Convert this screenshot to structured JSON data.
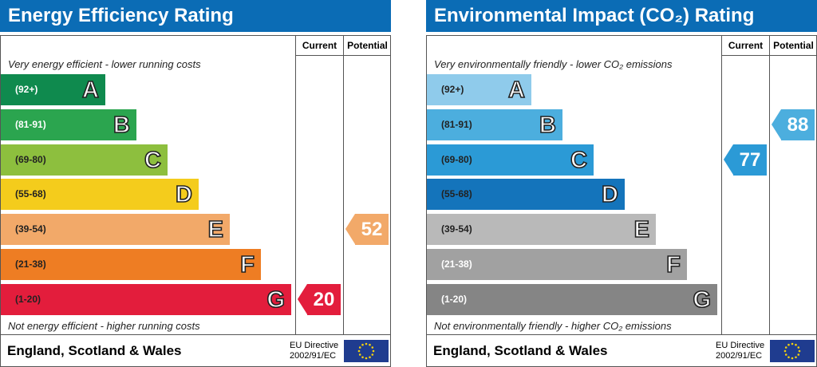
{
  "headers": {
    "current": "Current",
    "potential": "Potential"
  },
  "footer": {
    "region": "England, Scotland & Wales",
    "directive_line1": "EU Directive",
    "directive_line2": "2002/91/EC"
  },
  "chart_data": [
    {
      "type": "bar",
      "title": "Energy Efficiency Rating",
      "top_text": "Very energy efficient - lower running costs",
      "bottom_text": "Not energy efficient - higher running costs",
      "bands": [
        {
          "range": "(92+)",
          "letter": "A",
          "color": "#0f8a4e",
          "range_color": "#ffffff"
        },
        {
          "range": "(81-91)",
          "letter": "B",
          "color": "#2ba54f",
          "range_color": "#ffffff"
        },
        {
          "range": "(69-80)",
          "letter": "C",
          "color": "#8dbf3e",
          "range_color": "#222222"
        },
        {
          "range": "(55-68)",
          "letter": "D",
          "color": "#f4cc1c",
          "range_color": "#222222"
        },
        {
          "range": "(39-54)",
          "letter": "E",
          "color": "#f2a969",
          "range_color": "#222222"
        },
        {
          "range": "(21-38)",
          "letter": "F",
          "color": "#ee7d23",
          "range_color": "#222222"
        },
        {
          "range": "(1-20)",
          "letter": "G",
          "color": "#e31d3c",
          "range_color": "#222222"
        }
      ],
      "current": {
        "value": 20,
        "color": "#e31d3c"
      },
      "potential": {
        "value": 52,
        "color": "#f2a969"
      }
    },
    {
      "type": "bar",
      "title": "Environmental Impact (CO₂) Rating",
      "top_text": "Very environmentally friendly - lower CO₂ emissions",
      "bottom_text": "Not environmentally friendly - higher CO₂ emissions",
      "bands": [
        {
          "range": "(92+)",
          "letter": "A",
          "color": "#8fcbeb",
          "range_color": "#222222"
        },
        {
          "range": "(81-91)",
          "letter": "B",
          "color": "#4caede",
          "range_color": "#222222"
        },
        {
          "range": "(69-80)",
          "letter": "C",
          "color": "#2b9ad6",
          "range_color": "#222222"
        },
        {
          "range": "(55-68)",
          "letter": "D",
          "color": "#1474bb",
          "range_color": "#222222"
        },
        {
          "range": "(39-54)",
          "letter": "E",
          "color": "#b9b9b9",
          "range_color": "#222222"
        },
        {
          "range": "(21-38)",
          "letter": "F",
          "color": "#a1a1a1",
          "range_color": "#ffffff"
        },
        {
          "range": "(1-20)",
          "letter": "G",
          "color": "#858585",
          "range_color": "#ffffff"
        }
      ],
      "current": {
        "value": 77,
        "color": "#2b9ad6"
      },
      "potential": {
        "value": 88,
        "color": "#4caede"
      }
    }
  ]
}
